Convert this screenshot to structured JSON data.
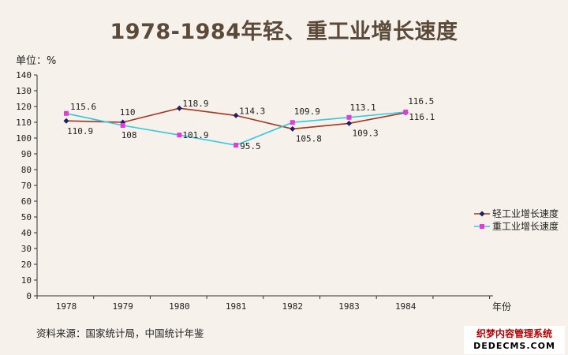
{
  "chart_data": {
    "type": "line",
    "title": "1978-1984年轻、重工业增长速度",
    "ylabel": "单位：%",
    "xlabel": "年份",
    "ylim": [
      0,
      140
    ],
    "yticks": [
      0,
      10,
      20,
      30,
      40,
      50,
      60,
      70,
      80,
      90,
      100,
      110,
      120,
      130,
      140
    ],
    "categories": [
      "1978",
      "1979",
      "1980",
      "1981",
      "1982",
      "1983",
      "1984"
    ],
    "series": [
      {
        "name": "轻工业增长速度",
        "color": "#a2361f",
        "marker": "diamond",
        "marker_color": "#1f1f66",
        "values": [
          110.9,
          110,
          118.9,
          114.3,
          105.8,
          109.3,
          116.1
        ],
        "labels": [
          "110.9",
          "110",
          "118.9",
          "114.3",
          "105.8",
          "109.3",
          "116.1"
        ]
      },
      {
        "name": "重工业增长速度",
        "color": "#36c8e0",
        "marker": "square",
        "marker_color": "#e23bd8",
        "values": [
          115.6,
          108,
          101.9,
          95.5,
          109.9,
          113.1,
          116.5
        ],
        "labels": [
          "115.6",
          "108",
          "101.9",
          "95.5",
          "109.9",
          "113.1",
          "116.5"
        ]
      }
    ],
    "legend_position": "right"
  },
  "source": "资料来源：国家统计局，中国统计年鉴",
  "watermark": {
    "line1": "织梦内容管理系统",
    "line2": "DEDECMS.COM"
  }
}
